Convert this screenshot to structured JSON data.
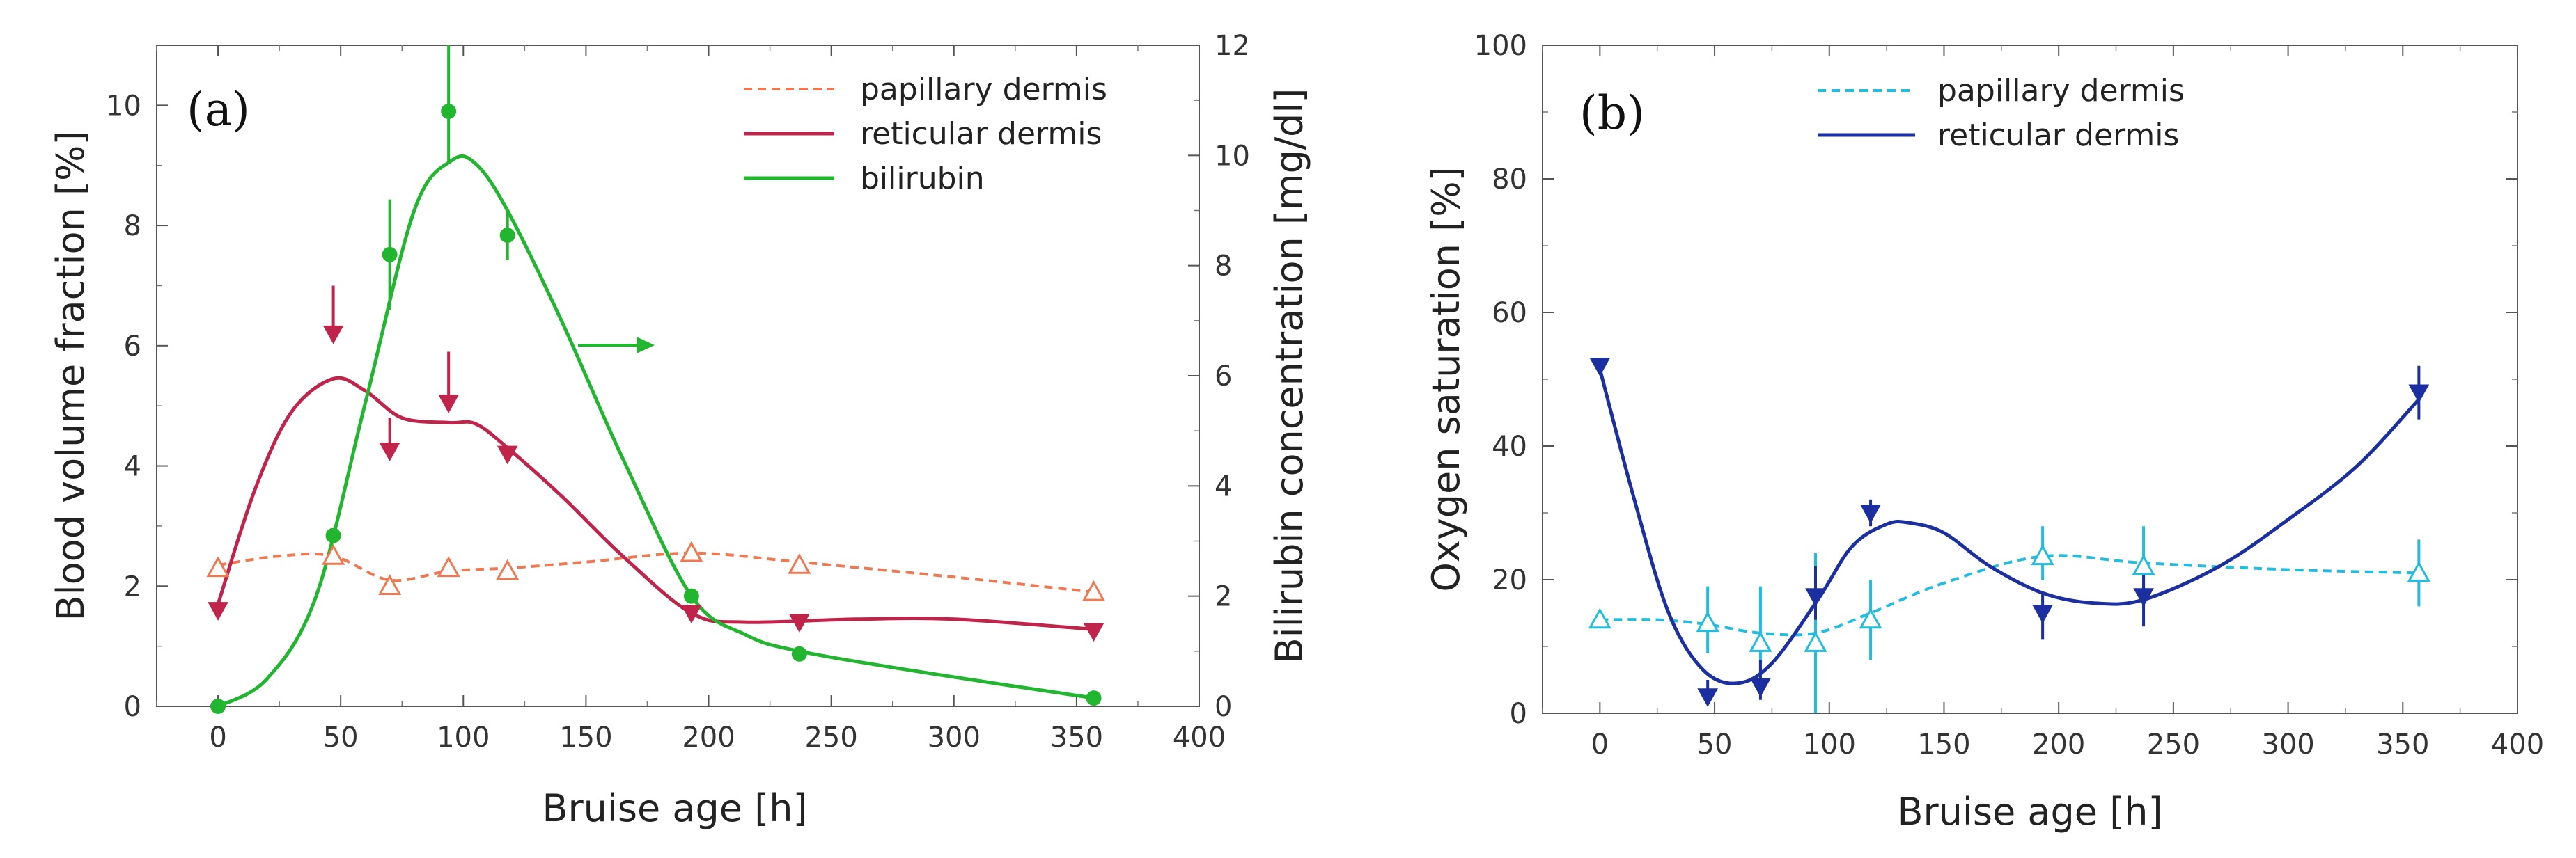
{
  "chart_data": [
    {
      "type": "line",
      "panel_label": "(a)",
      "xlabel": "Bruise age [h]",
      "ylabel": "Blood volume fraction [%]",
      "y2label": "Bilirubin concentration [mg/dl]",
      "xlim": [
        -25,
        400
      ],
      "ylim": [
        0,
        11
      ],
      "y2lim": [
        0,
        12
      ],
      "x_ticks": [
        0,
        50,
        100,
        150,
        200,
        250,
        300,
        350,
        400
      ],
      "y_ticks": [
        0,
        2,
        4,
        6,
        8,
        10
      ],
      "y2_ticks": [
        0,
        2,
        4,
        6,
        8,
        10,
        12
      ],
      "legend_position": "top-right",
      "annotation": "arrow pointing right toward the bilirubin (right) axis",
      "series": [
        {
          "name": "papillary dermis",
          "color": "#f07850",
          "axis": "left",
          "line_style": "dashed",
          "marker": "open-triangle-up",
          "points": [
            [
              0,
              2.3
            ],
            [
              47,
              2.5
            ],
            [
              70,
              2.0
            ],
            [
              94,
              2.3
            ],
            [
              118,
              2.25
            ],
            [
              193,
              2.55
            ],
            [
              237,
              2.35
            ],
            [
              357,
              1.9
            ]
          ],
          "curve": [
            [
              0,
              2.35
            ],
            [
              25,
              2.5
            ],
            [
              47,
              2.5
            ],
            [
              70,
              2.1
            ],
            [
              94,
              2.25
            ],
            [
              118,
              2.3
            ],
            [
              150,
              2.4
            ],
            [
              193,
              2.55
            ],
            [
              237,
              2.4
            ],
            [
              300,
              2.15
            ],
            [
              357,
              1.9
            ]
          ]
        },
        {
          "name": "reticular dermis",
          "color": "#c0244a",
          "axis": "left",
          "line_style": "solid",
          "marker": "filled-triangle-down",
          "points": [
            [
              0,
              1.6
            ],
            [
              47,
              6.2
            ],
            [
              70,
              4.25
            ],
            [
              94,
              5.05
            ],
            [
              118,
              4.2
            ],
            [
              193,
              1.55
            ],
            [
              237,
              1.4
            ],
            [
              357,
              1.25
            ]
          ],
          "error_bars": [
            [
              47,
              6.2,
              7.0
            ],
            [
              70,
              4.25,
              4.8
            ],
            [
              94,
              5.05,
              5.9
            ]
          ],
          "curve": [
            [
              0,
              1.7
            ],
            [
              15,
              3.6
            ],
            [
              30,
              4.9
            ],
            [
              47,
              5.45
            ],
            [
              60,
              5.25
            ],
            [
              75,
              4.8
            ],
            [
              94,
              4.72
            ],
            [
              105,
              4.7
            ],
            [
              118,
              4.3
            ],
            [
              140,
              3.5
            ],
            [
              165,
              2.5
            ],
            [
              193,
              1.55
            ],
            [
              215,
              1.4
            ],
            [
              260,
              1.45
            ],
            [
              300,
              1.45
            ],
            [
              357,
              1.28
            ]
          ]
        },
        {
          "name": "bilirubin",
          "color": "#22b530",
          "axis": "right",
          "line_style": "solid",
          "marker": "filled-circle",
          "points": [
            [
              0,
              0.0
            ],
            [
              47,
              3.1
            ],
            [
              70,
              8.2
            ],
            [
              94,
              10.8
            ],
            [
              118,
              8.55
            ],
            [
              193,
              2.0
            ],
            [
              237,
              0.95
            ],
            [
              357,
              0.15
            ]
          ],
          "error_bars": [
            [
              70,
              7.2,
              9.2
            ],
            [
              94,
              9.9,
              12.0
            ],
            [
              118,
              8.1,
              9.0
            ]
          ],
          "curve": [
            [
              0,
              0.0
            ],
            [
              20,
              0.5
            ],
            [
              40,
              2.0
            ],
            [
              60,
              5.5
            ],
            [
              80,
              9.0
            ],
            [
              95,
              9.9
            ],
            [
              105,
              9.85
            ],
            [
              118,
              9.0
            ],
            [
              140,
              7.0
            ],
            [
              165,
              4.5
            ],
            [
              193,
              2.0
            ],
            [
              215,
              1.3
            ],
            [
              237,
              1.0
            ],
            [
              290,
              0.6
            ],
            [
              357,
              0.15
            ]
          ]
        }
      ]
    },
    {
      "type": "line",
      "panel_label": "(b)",
      "xlabel": "Bruise age [h]",
      "ylabel": "Oxygen saturation [%]",
      "xlim": [
        -25,
        400
      ],
      "ylim": [
        0,
        100
      ],
      "x_ticks": [
        0,
        50,
        100,
        150,
        200,
        250,
        300,
        350,
        400
      ],
      "y_ticks": [
        0,
        20,
        40,
        60,
        80,
        100
      ],
      "legend_position": "top-center",
      "series": [
        {
          "name": "papillary dermis",
          "color": "#22bce0",
          "line_style": "dashed",
          "marker": "open-triangle-up",
          "points": [
            [
              0,
              14
            ],
            [
              47,
              13.5
            ],
            [
              70,
              10.5
            ],
            [
              94,
              10.5
            ],
            [
              118,
              14
            ],
            [
              193,
              23.5
            ],
            [
              237,
              22
            ],
            [
              357,
              21
            ]
          ],
          "error_bars": [
            [
              47,
              9,
              19
            ],
            [
              70,
              5,
              19
            ],
            [
              94,
              0,
              24
            ],
            [
              118,
              8,
              20
            ],
            [
              193,
              20,
              28
            ],
            [
              237,
              16,
              28
            ],
            [
              357,
              16,
              26
            ]
          ],
          "curve": [
            [
              0,
              14
            ],
            [
              25,
              14
            ],
            [
              47,
              13.3
            ],
            [
              70,
              12
            ],
            [
              94,
              12
            ],
            [
              118,
              15
            ],
            [
              150,
              19.5
            ],
            [
              193,
              23.5
            ],
            [
              237,
              22.5
            ],
            [
              300,
              21.5
            ],
            [
              357,
              21
            ]
          ]
        },
        {
          "name": "reticular dermis",
          "color": "#1c2fa0",
          "line_style": "solid",
          "marker": "filled-triangle-down",
          "points": [
            [
              0,
              52
            ],
            [
              47,
              2.5
            ],
            [
              70,
              4
            ],
            [
              94,
              17.5
            ],
            [
              118,
              30
            ],
            [
              193,
              15
            ],
            [
              237,
              17.5
            ],
            [
              357,
              48
            ]
          ],
          "error_bars": [
            [
              47,
              2.5,
              5
            ],
            [
              70,
              2,
              8
            ],
            [
              94,
              14,
              22
            ],
            [
              118,
              28,
              32
            ],
            [
              193,
              11,
              18
            ],
            [
              237,
              13,
              22
            ],
            [
              357,
              44,
              52
            ]
          ],
          "curve": [
            [
              0,
              51.5
            ],
            [
              15,
              32
            ],
            [
              30,
              15
            ],
            [
              45,
              6.5
            ],
            [
              60,
              4.5
            ],
            [
              75,
              7.5
            ],
            [
              95,
              17
            ],
            [
              110,
              25
            ],
            [
              125,
              28.3
            ],
            [
              135,
              28.5
            ],
            [
              150,
              27
            ],
            [
              170,
              22
            ],
            [
              193,
              18
            ],
            [
              215,
              16.5
            ],
            [
              237,
              17
            ],
            [
              270,
              22
            ],
            [
              300,
              29
            ],
            [
              330,
              37
            ],
            [
              357,
              47
            ]
          ]
        }
      ]
    }
  ]
}
